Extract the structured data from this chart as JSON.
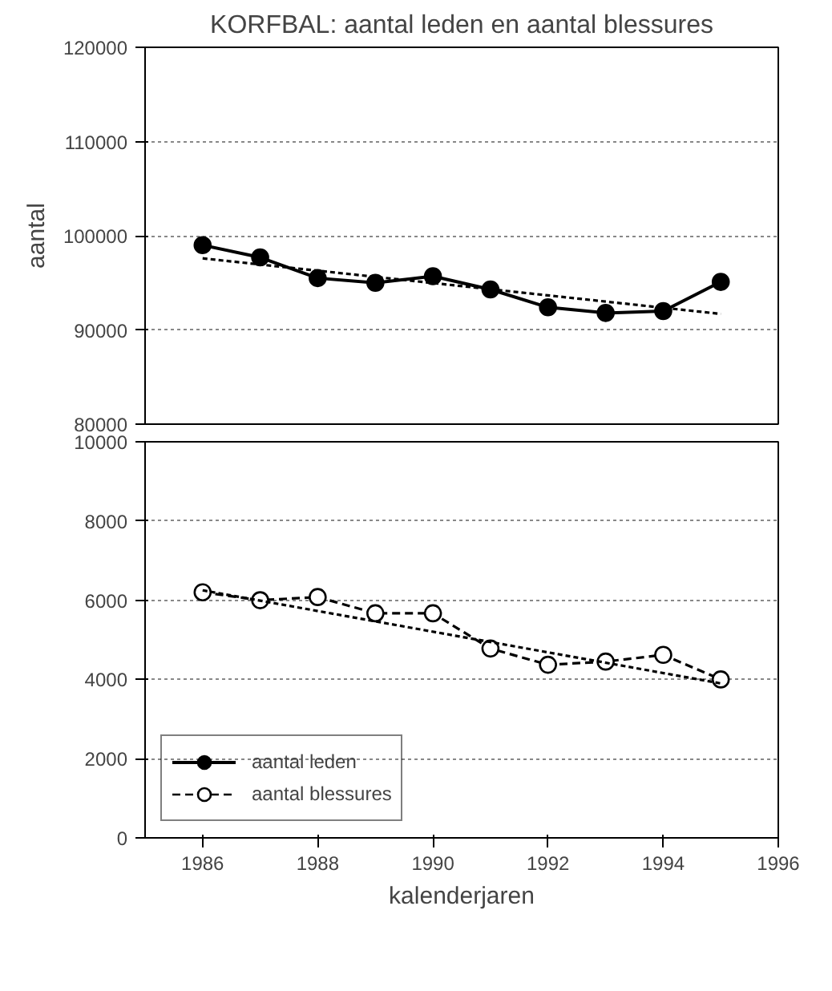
{
  "chart_data": [
    {
      "type": "line",
      "title": "KORFBAL: aantal leden en aantal blessures",
      "ylabel": "aantal",
      "x": [
        "1986",
        "1987",
        "1988",
        "1989",
        "1990",
        "1991",
        "1992",
        "1993",
        "1994",
        "1995"
      ],
      "series": [
        {
          "name": "aantal leden",
          "color": "#000000",
          "marker": "circle",
          "line_style": "solid",
          "values": [
            99000,
            97700,
            95500,
            95000,
            95700,
            94300,
            92400,
            91800,
            92000,
            95100
          ]
        },
        {
          "type": "line",
          "color": "#000000",
          "marker": "none",
          "line_style": "dotted",
          "x": [
            "1986",
            "1995"
          ],
          "values": [
            97600,
            91700
          ]
        }
      ],
      "xlim": [
        "1985",
        "1996"
      ],
      "ylim": [
        80000,
        120000
      ],
      "yticks": [
        80000,
        90000,
        100000,
        110000,
        120000
      ],
      "grid": "y",
      "tick_labels": "y",
      "legend": "bottom left"
    },
    {
      "type": "line",
      "xlabel": "kalenderjaren",
      "x": [
        "1986",
        "1987",
        "1988",
        "1989",
        "1990",
        "1991",
        "1992",
        "1993",
        "1994",
        "1995"
      ],
      "series": [
        {
          "name": "aantal blessures",
          "color": "#000000",
          "marker": "circle",
          "line_style": "dashed",
          "values": [
            6200,
            6000,
            6080,
            5670,
            5670,
            4780,
            4370,
            4450,
            4620,
            4000
          ]
        },
        {
          "type": "line",
          "color": "#000000",
          "marker": "none",
          "line_style": "dotted",
          "x": [
            "1986",
            "1995"
          ],
          "values": [
            6250,
            3900
          ]
        }
      ],
      "xlim": [
        "1985",
        "1996"
      ],
      "xticks": [
        "1986",
        "1988",
        "1990",
        "1992",
        "1994",
        "1996"
      ],
      "ylim": [
        0,
        10000
      ],
      "yticks": [
        0,
        2000,
        4000,
        6000,
        8000,
        10000
      ],
      "grid": "y",
      "legend": "bottom left"
    }
  ]
}
